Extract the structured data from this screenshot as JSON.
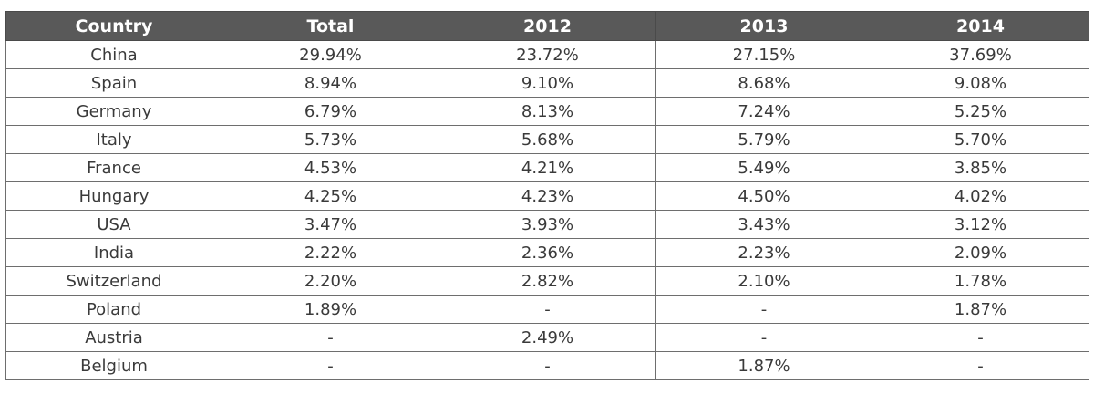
{
  "chart_data": {
    "type": "table",
    "columns": [
      "Country",
      "Total",
      "2012",
      "2013",
      "2014"
    ],
    "rows": [
      [
        "China",
        "29.94%",
        "23.72%",
        "27.15%",
        "37.69%"
      ],
      [
        "Spain",
        "8.94%",
        "9.10%",
        "8.68%",
        "9.08%"
      ],
      [
        "Germany",
        "6.79%",
        "8.13%",
        "7.24%",
        "5.25%"
      ],
      [
        "Italy",
        "5.73%",
        "5.68%",
        "5.79%",
        "5.70%"
      ],
      [
        "France",
        "4.53%",
        "4.21%",
        "5.49%",
        "3.85%"
      ],
      [
        "Hungary",
        "4.25%",
        "4.23%",
        "4.50%",
        "4.02%"
      ],
      [
        "USA",
        "3.47%",
        "3.93%",
        "3.43%",
        "3.12%"
      ],
      [
        "India",
        "2.22%",
        "2.36%",
        "2.23%",
        "2.09%"
      ],
      [
        "Switzerland",
        "2.20%",
        "2.82%",
        "2.10%",
        "1.78%"
      ],
      [
        "Poland",
        "1.89%",
        "-",
        "-",
        "1.87%"
      ],
      [
        "Austria",
        "-",
        "2.49%",
        "-",
        "-"
      ],
      [
        "Belgium",
        "-",
        "-",
        "1.87%",
        "-"
      ]
    ],
    "header_color": "#595959",
    "header_text_color": "#ffffff"
  }
}
